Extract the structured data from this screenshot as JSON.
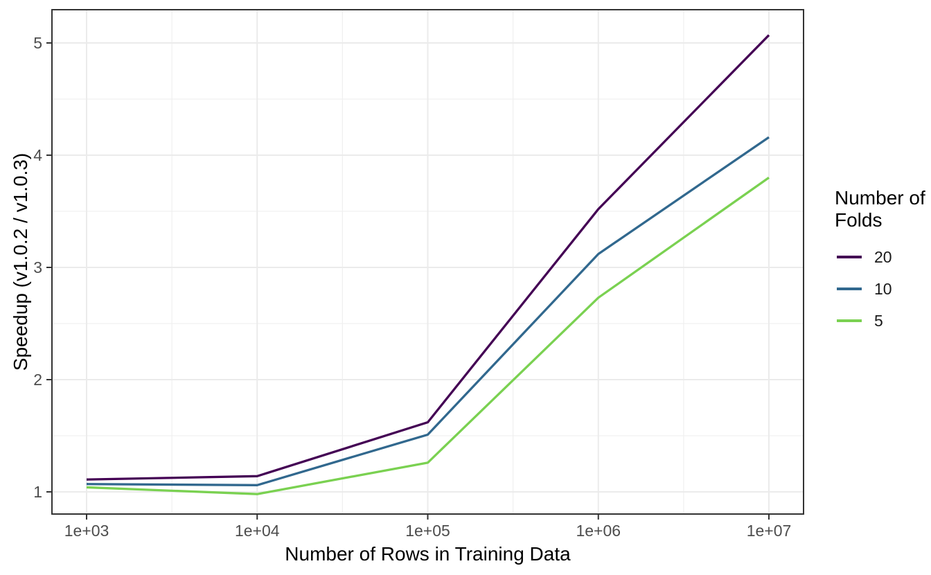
{
  "chart_data": {
    "type": "line",
    "title": "",
    "xlabel": "Number of Rows in Training Data",
    "ylabel": "Speedup (v1.0.2 / v1.0.3)",
    "legend_title": "Number of Folds",
    "legend_position": "right",
    "x_scale": "log10",
    "x": [
      1000,
      10000,
      100000,
      1000000,
      10000000
    ],
    "x_tick_labels": [
      "1e+03",
      "1e+04",
      "1e+05",
      "1e+06",
      "1e+07"
    ],
    "y_ticks": [
      1,
      2,
      3,
      4,
      5
    ],
    "y_tick_labels": [
      "1",
      "2",
      "3",
      "4",
      "5"
    ],
    "ylim": [
      0.79,
      5.29
    ],
    "xlim_log10": [
      2.8,
      7.2
    ],
    "grid": "major+minor",
    "series": [
      {
        "name": "20",
        "color": "#440154",
        "values": [
          1.11,
          1.14,
          1.62,
          3.52,
          5.07
        ]
      },
      {
        "name": "10",
        "color": "#31688E",
        "values": [
          1.07,
          1.06,
          1.51,
          3.12,
          4.16
        ]
      },
      {
        "name": "5",
        "color": "#7AD151",
        "values": [
          1.04,
          0.98,
          1.26,
          2.73,
          3.8
        ]
      }
    ],
    "theme": {
      "background": "#FFFFFF",
      "panel_border": "#333333",
      "grid_major_color": "#EBEBEB",
      "grid_minor_color": "#F0F0F0",
      "tick_color": "#333333",
      "tick_label_color": "#4D4D4D",
      "axis_title_color": "#000000"
    }
  }
}
